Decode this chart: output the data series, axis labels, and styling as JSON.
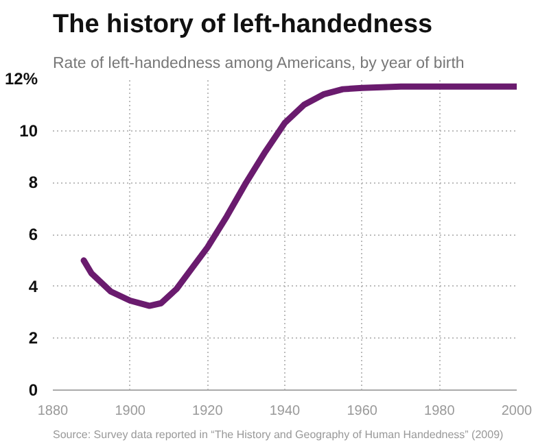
{
  "chart_data": {
    "type": "line",
    "title": "The history of left-handedness",
    "subtitle": "Rate of left-handedness among Americans, by year of birth",
    "x": [
      1888,
      1890,
      1895,
      1900,
      1905,
      1908,
      1912,
      1916,
      1920,
      1925,
      1930,
      1935,
      1940,
      1945,
      1950,
      1955,
      1960,
      1970,
      1980,
      2000
    ],
    "series": [
      {
        "color": "#6a1b6e",
        "values": [
          5.0,
          4.5,
          3.8,
          3.45,
          3.25,
          3.35,
          3.9,
          4.7,
          5.5,
          6.7,
          8.0,
          9.2,
          10.3,
          11.0,
          11.4,
          11.6,
          11.65,
          11.7,
          11.7,
          11.7
        ]
      }
    ],
    "xlim": [
      1880,
      2000
    ],
    "xticks": [
      1880,
      1900,
      1920,
      1940,
      1960,
      1980,
      2000
    ],
    "ylim": [
      0,
      12
    ],
    "yticks": [
      0,
      2,
      4,
      6,
      8,
      10,
      {
        "value": 12,
        "label": "12%"
      }
    ],
    "grid": true,
    "line_style": "solid",
    "marker": "none",
    "annotations": [
      "Source: Survey data reported in “The History and Geography of Human Handedness” (2009)"
    ]
  }
}
